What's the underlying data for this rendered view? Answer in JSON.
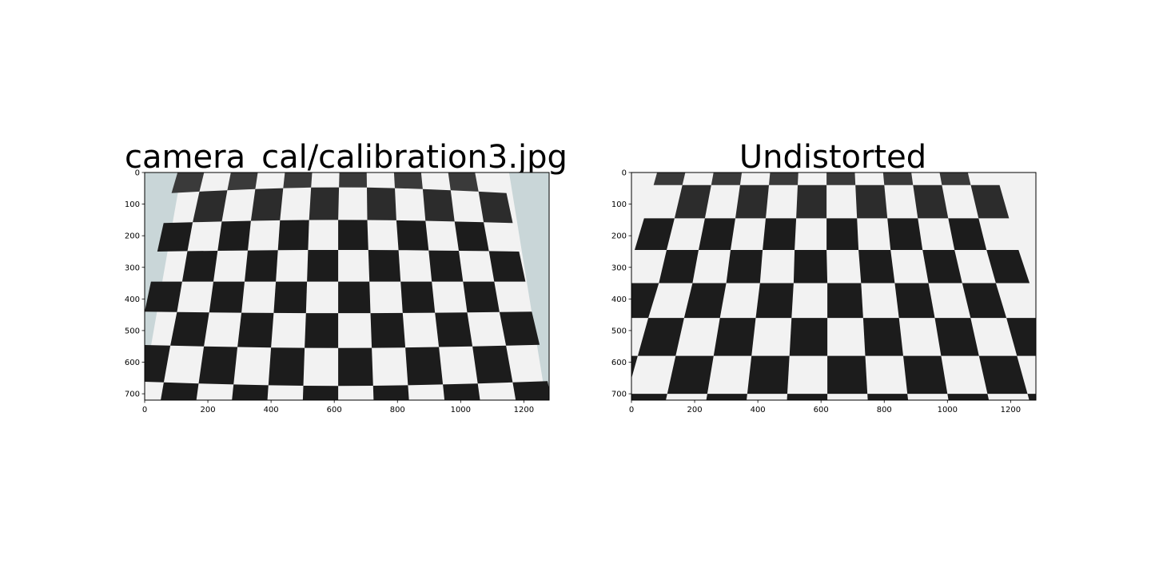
{
  "figure": {
    "panels": [
      {
        "title": "camera_cal/calibration3.jpg",
        "x_ticks": [
          "0",
          "200",
          "400",
          "600",
          "800",
          "1000",
          "1200"
        ],
        "y_ticks": [
          "0",
          "100",
          "200",
          "300",
          "400",
          "500",
          "600",
          "700"
        ]
      },
      {
        "title": "Undistorted",
        "x_ticks": [
          "0",
          "200",
          "400",
          "600",
          "800",
          "1000",
          "1200"
        ],
        "y_ticks": [
          "0",
          "100",
          "200",
          "300",
          "400",
          "500",
          "600",
          "700"
        ]
      }
    ],
    "image_extent": {
      "width": 1280,
      "height": 720
    },
    "colors": {
      "wall": "#c9d6d8",
      "paper": "#f2f2f2",
      "dark_square": "#1c1c1c"
    }
  }
}
